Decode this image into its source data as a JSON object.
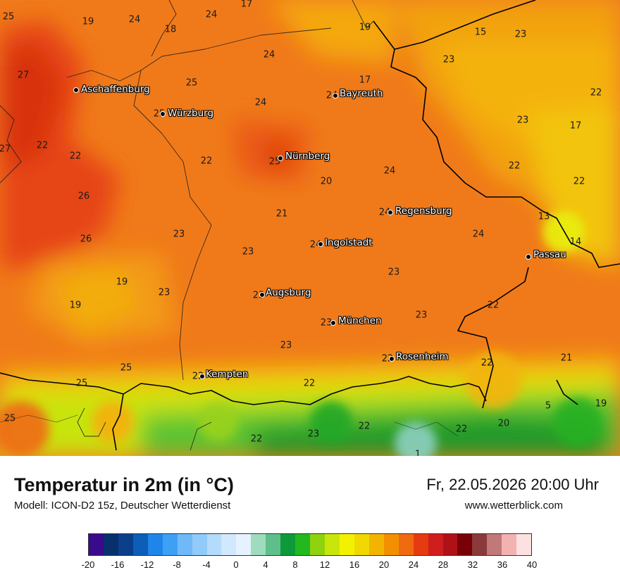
{
  "title": "Temperatur in 2m (in °C)",
  "model": "Modell: ICON-D2 15z, Deutscher Wetterdienst",
  "datetime": "Fr, 22.05.2026 20:00 Uhr",
  "website": "www.wetterblick.com",
  "cities": [
    {
      "name": "Aschaffenburg",
      "value": "24"
    },
    {
      "name": "Würzburg",
      "value": "25"
    },
    {
      "name": "Bayreuth",
      "value": "24"
    },
    {
      "name": "Nürnberg",
      "value": "25"
    },
    {
      "name": "Regensburg",
      "value": "24"
    },
    {
      "name": "Ingolstadt",
      "value": "24"
    },
    {
      "name": "Passau",
      "value": ""
    },
    {
      "name": "Augsburg",
      "value": "23"
    },
    {
      "name": "München",
      "value": "23"
    },
    {
      "name": "Rosenheim",
      "value": "22"
    },
    {
      "name": "Kempten",
      "value": "22"
    }
  ],
  "field_values": [
    "25",
    "19",
    "24",
    "18",
    "24",
    "17",
    "19",
    "15",
    "23",
    "27",
    "25",
    "24",
    "23",
    "17",
    "22",
    "24",
    "23",
    "17",
    "27",
    "22",
    "22",
    "22",
    "24",
    "22",
    "20",
    "26",
    "22",
    "21",
    "13",
    "23",
    "24",
    "14",
    "26",
    "23",
    "23",
    "19",
    "23",
    "22",
    "19",
    "23",
    "23",
    "25",
    "22",
    "21",
    "25",
    "22",
    "25",
    "22",
    "22",
    "5",
    "19",
    "23",
    "22",
    "20",
    "20",
    "1"
  ],
  "legend": {
    "ticks": [
      "-20",
      "-16",
      "-12",
      "-8",
      "-4",
      "0",
      "4",
      "8",
      "12",
      "16",
      "20",
      "24",
      "28",
      "32",
      "36",
      "40"
    ],
    "colors": [
      "#3a0a8c",
      "#08306b",
      "#0b3f8a",
      "#0d5eb8",
      "#1f85e8",
      "#3ea0f5",
      "#6fb9f8",
      "#92cbfa",
      "#b3dbfc",
      "#d2e8fd",
      "#e6f2ff",
      "#9fdcbe",
      "#5fbf8a",
      "#0e9a3a",
      "#22b81e",
      "#8fd20e",
      "#c8e60a",
      "#f2f200",
      "#f0d800",
      "#f2b400",
      "#f29000",
      "#f06a10",
      "#e63b10",
      "#d01e1e",
      "#b01118",
      "#7a0008",
      "#8a3a3a",
      "#c07878",
      "#f3b2b2",
      "#fde0e0"
    ]
  }
}
